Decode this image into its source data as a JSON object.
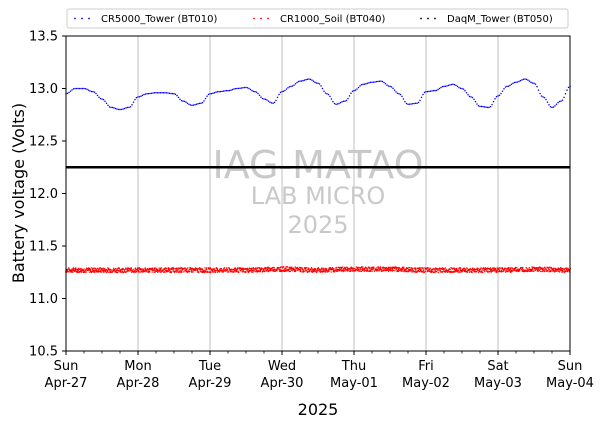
{
  "chart_data": {
    "type": "scatter",
    "xlabel": "2025",
    "ylabel": "Battery voltage (Volts)",
    "ylim": [
      10.5,
      13.5
    ],
    "yticks": [
      "10.5",
      "11.0",
      "11.5",
      "12.0",
      "12.5",
      "13.0",
      "13.5"
    ],
    "xlim": [
      "2025-04-27",
      "2025-05-04"
    ],
    "xticks": [
      {
        "day": "Sun",
        "date": "Apr-27"
      },
      {
        "day": "Mon",
        "date": "Apr-28"
      },
      {
        "day": "Tue",
        "date": "Apr-29"
      },
      {
        "day": "Wed",
        "date": "Apr-30"
      },
      {
        "day": "Thu",
        "date": "May-01"
      },
      {
        "day": "Fri",
        "date": "May-02"
      },
      {
        "day": "Sat",
        "date": "May-03"
      },
      {
        "day": "Sun",
        "date": "May-04"
      }
    ],
    "grid": "vertical",
    "legend_placement": "top",
    "threshold_line": 12.25,
    "watermark": [
      "IAG-MATAO",
      "LAB MICRO",
      "2025"
    ],
    "series": [
      {
        "name": "CR5000_Tower (BT010)",
        "color": "#0000ff",
        "x": [
          "2025-04-27 00:00",
          "2025-04-27 03:00",
          "2025-04-27 06:00",
          "2025-04-27 09:00",
          "2025-04-27 12:00",
          "2025-04-27 15:00",
          "2025-04-27 18:00",
          "2025-04-27 21:00",
          "2025-04-28 00:00",
          "2025-04-28 03:00",
          "2025-04-28 06:00",
          "2025-04-28 09:00",
          "2025-04-28 12:00",
          "2025-04-28 15:00",
          "2025-04-28 18:00",
          "2025-04-28 21:00",
          "2025-04-29 00:00",
          "2025-04-29 03:00",
          "2025-04-29 06:00",
          "2025-04-29 09:00",
          "2025-04-29 12:00",
          "2025-04-29 15:00",
          "2025-04-29 18:00",
          "2025-04-29 21:00",
          "2025-04-30 00:00",
          "2025-04-30 03:00",
          "2025-04-30 06:00",
          "2025-04-30 09:00",
          "2025-04-30 12:00",
          "2025-04-30 15:00",
          "2025-04-30 18:00",
          "2025-04-30 21:00",
          "2025-05-01 00:00",
          "2025-05-01 03:00",
          "2025-05-01 06:00",
          "2025-05-01 09:00",
          "2025-05-01 12:00",
          "2025-05-01 15:00",
          "2025-05-01 18:00",
          "2025-05-01 21:00",
          "2025-05-02 00:00",
          "2025-05-02 03:00",
          "2025-05-02 06:00",
          "2025-05-02 09:00",
          "2025-05-02 12:00",
          "2025-05-02 15:00",
          "2025-05-02 18:00",
          "2025-05-02 21:00",
          "2025-05-03 00:00",
          "2025-05-03 03:00",
          "2025-05-03 06:00",
          "2025-05-03 09:00",
          "2025-05-03 12:00",
          "2025-05-03 15:00",
          "2025-05-03 18:00",
          "2025-05-03 21:00",
          "2025-05-04 00:00"
        ],
        "y": [
          12.95,
          13.0,
          13.0,
          12.97,
          12.9,
          12.82,
          12.8,
          12.82,
          12.92,
          12.95,
          12.96,
          12.96,
          12.95,
          12.88,
          12.84,
          12.86,
          12.95,
          12.97,
          12.98,
          13.0,
          13.01,
          12.97,
          12.9,
          12.86,
          12.97,
          13.02,
          13.07,
          13.09,
          13.05,
          12.95,
          12.85,
          12.88,
          12.98,
          13.04,
          13.06,
          13.07,
          13.02,
          12.95,
          12.85,
          12.86,
          12.97,
          12.98,
          13.02,
          13.04,
          13.0,
          12.92,
          12.83,
          12.82,
          12.93,
          13.02,
          13.06,
          13.09,
          13.05,
          12.92,
          12.82,
          12.88,
          13.02
        ]
      },
      {
        "name": "CR1000_Soil (BT040)",
        "color": "#ff0000",
        "x": [
          "2025-04-27 00:00",
          "2025-04-27 12:00",
          "2025-04-28 00:00",
          "2025-04-28 12:00",
          "2025-04-29 00:00",
          "2025-04-29 12:00",
          "2025-04-30 00:00",
          "2025-04-30 12:00",
          "2025-05-01 00:00",
          "2025-05-01 12:00",
          "2025-05-02 00:00",
          "2025-05-02 12:00",
          "2025-05-03 00:00",
          "2025-05-03 12:00",
          "2025-05-04 00:00"
        ],
        "y": [
          11.27,
          11.27,
          11.27,
          11.27,
          11.27,
          11.27,
          11.28,
          11.27,
          11.28,
          11.28,
          11.27,
          11.27,
          11.27,
          11.28,
          11.27
        ]
      },
      {
        "name": "DaqM_Tower (BT050)",
        "color": "#000000",
        "x": [
          "2025-04-27 00:00",
          "2025-05-04 00:00"
        ],
        "y": [
          12.25,
          12.25
        ]
      }
    ]
  }
}
